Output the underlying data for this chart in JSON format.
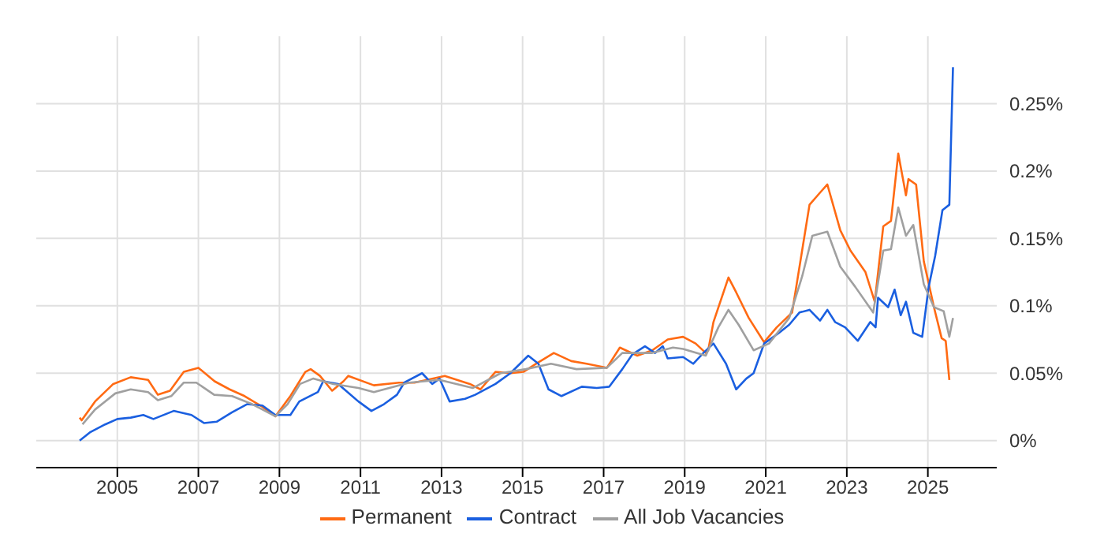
{
  "chart_data": {
    "type": "line",
    "xlim": [
      2003,
      2026.7
    ],
    "xticks": [
      2005,
      2007,
      2009,
      2011,
      2013,
      2015,
      2017,
      2019,
      2021,
      2023,
      2025
    ],
    "ylim": [
      -0.02,
      0.3
    ],
    "yticks": [
      {
        "value": 0,
        "label": "0%"
      },
      {
        "value": 0.05,
        "label": "0.05%"
      },
      {
        "value": 0.1,
        "label": "0.1%"
      },
      {
        "value": 0.15,
        "label": "0.15%"
      },
      {
        "value": 0.2,
        "label": "0.2%"
      },
      {
        "value": 0.25,
        "label": "0.25%"
      }
    ],
    "grid": true,
    "legend": "bottom",
    "marker": "none",
    "line_style": "solid",
    "series": [
      {
        "name": "Permanent",
        "color": "#ff6a13",
        "x": [
          2004.07,
          2004.12,
          2004.45,
          2004.9,
          2005.33,
          2005.76,
          2006.0,
          2006.3,
          2006.64,
          2007.0,
          2007.4,
          2007.77,
          2008.14,
          2008.58,
          2008.9,
          2009.27,
          2009.64,
          2009.77,
          2010.0,
          2010.3,
          2010.58,
          2010.7,
          2011.33,
          2011.95,
          2012.33,
          2013.08,
          2013.7,
          2013.96,
          2014.33,
          2014.7,
          2015.02,
          2015.33,
          2015.77,
          2016.2,
          2016.58,
          2017.08,
          2017.4,
          2017.83,
          2018.2,
          2018.58,
          2018.96,
          2019.27,
          2019.52,
          2019.58,
          2019.71,
          2020.08,
          2020.27,
          2020.58,
          2020.96,
          2021.27,
          2021.65,
          2022.08,
          2022.34,
          2022.52,
          2022.84,
          2023.09,
          2023.46,
          2023.69,
          2023.9,
          2024.09,
          2024.27,
          2024.46,
          2024.52,
          2024.71,
          2024.9,
          2025.15,
          2025.34,
          2025.44,
          2025.53
        ],
        "values": [
          0.017,
          0.015,
          0.029,
          0.042,
          0.047,
          0.045,
          0.034,
          0.037,
          0.051,
          0.054,
          0.044,
          0.038,
          0.033,
          0.025,
          0.018,
          0.033,
          0.051,
          0.053,
          0.048,
          0.037,
          0.044,
          0.048,
          0.041,
          0.043,
          0.043,
          0.048,
          0.042,
          0.038,
          0.051,
          0.05,
          0.051,
          0.057,
          0.065,
          0.059,
          0.057,
          0.054,
          0.069,
          0.063,
          0.067,
          0.075,
          0.077,
          0.072,
          0.065,
          0.067,
          0.088,
          0.121,
          0.11,
          0.091,
          0.073,
          0.084,
          0.095,
          0.175,
          0.184,
          0.19,
          0.156,
          0.141,
          0.125,
          0.103,
          0.159,
          0.163,
          0.213,
          0.182,
          0.194,
          0.19,
          0.133,
          0.099,
          0.076,
          0.074,
          0.045
        ]
      },
      {
        "name": "Contract",
        "color": "#1a5fe0",
        "x": [
          2004.07,
          2004.32,
          2004.7,
          2005.0,
          2005.33,
          2005.64,
          2005.89,
          2006.39,
          2006.83,
          2007.14,
          2007.45,
          2007.83,
          2008.2,
          2008.58,
          2008.9,
          2009.27,
          2009.49,
          2009.95,
          2010.08,
          2010.45,
          2010.95,
          2011.27,
          2011.58,
          2011.9,
          2012.08,
          2012.52,
          2012.77,
          2012.95,
          2013.2,
          2013.58,
          2013.83,
          2014.33,
          2014.7,
          2015.14,
          2015.39,
          2015.64,
          2015.96,
          2016.46,
          2016.83,
          2017.14,
          2017.46,
          2017.71,
          2018.02,
          2018.27,
          2018.46,
          2018.58,
          2018.96,
          2019.21,
          2019.46,
          2019.71,
          2020.02,
          2020.27,
          2020.52,
          2020.7,
          2020.96,
          2021.33,
          2021.58,
          2021.83,
          2022.08,
          2022.34,
          2022.52,
          2022.71,
          2022.96,
          2023.27,
          2023.58,
          2023.71,
          2023.77,
          2024.02,
          2024.18,
          2024.33,
          2024.46,
          2024.64,
          2024.86,
          2025.02,
          2025.18,
          2025.36,
          2025.53,
          2025.62
        ],
        "values": [
          0.0,
          0.006,
          0.012,
          0.016,
          0.017,
          0.019,
          0.016,
          0.022,
          0.019,
          0.013,
          0.014,
          0.021,
          0.027,
          0.026,
          0.019,
          0.019,
          0.029,
          0.036,
          0.044,
          0.042,
          0.029,
          0.022,
          0.027,
          0.034,
          0.043,
          0.05,
          0.042,
          0.046,
          0.029,
          0.031,
          0.034,
          0.042,
          0.05,
          0.063,
          0.057,
          0.038,
          0.033,
          0.04,
          0.039,
          0.04,
          0.053,
          0.064,
          0.07,
          0.065,
          0.07,
          0.061,
          0.062,
          0.057,
          0.065,
          0.072,
          0.057,
          0.038,
          0.046,
          0.05,
          0.072,
          0.08,
          0.086,
          0.095,
          0.097,
          0.089,
          0.097,
          0.088,
          0.084,
          0.074,
          0.088,
          0.084,
          0.106,
          0.099,
          0.112,
          0.093,
          0.103,
          0.08,
          0.077,
          0.114,
          0.137,
          0.171,
          0.175,
          0.277
        ]
      },
      {
        "name": "All Job Vacancies",
        "color": "#a0a0a0",
        "x": [
          2004.14,
          2004.45,
          2004.95,
          2005.33,
          2005.76,
          2006.0,
          2006.33,
          2006.64,
          2006.95,
          2007.39,
          2007.83,
          2008.33,
          2008.9,
          2009.2,
          2009.51,
          2009.83,
          2010.33,
          2010.95,
          2011.33,
          2012.2,
          2012.95,
          2013.77,
          2014.46,
          2015.08,
          2015.7,
          2016.33,
          2017.08,
          2017.46,
          2018.2,
          2018.71,
          2018.96,
          2019.52,
          2019.83,
          2020.08,
          2020.33,
          2020.7,
          2021.08,
          2021.58,
          2021.9,
          2022.15,
          2022.52,
          2022.84,
          2023.21,
          2023.65,
          2023.9,
          2024.09,
          2024.27,
          2024.46,
          2024.64,
          2024.9,
          2025.15,
          2025.39,
          2025.53,
          2025.62
        ],
        "values": [
          0.012,
          0.023,
          0.035,
          0.038,
          0.036,
          0.03,
          0.033,
          0.043,
          0.043,
          0.034,
          0.033,
          0.027,
          0.018,
          0.027,
          0.042,
          0.046,
          0.042,
          0.039,
          0.036,
          0.043,
          0.045,
          0.039,
          0.05,
          0.053,
          0.057,
          0.053,
          0.054,
          0.065,
          0.065,
          0.069,
          0.068,
          0.063,
          0.084,
          0.097,
          0.086,
          0.067,
          0.072,
          0.091,
          0.122,
          0.152,
          0.155,
          0.129,
          0.114,
          0.095,
          0.141,
          0.142,
          0.173,
          0.152,
          0.16,
          0.116,
          0.099,
          0.096,
          0.077,
          0.091
        ]
      }
    ]
  }
}
